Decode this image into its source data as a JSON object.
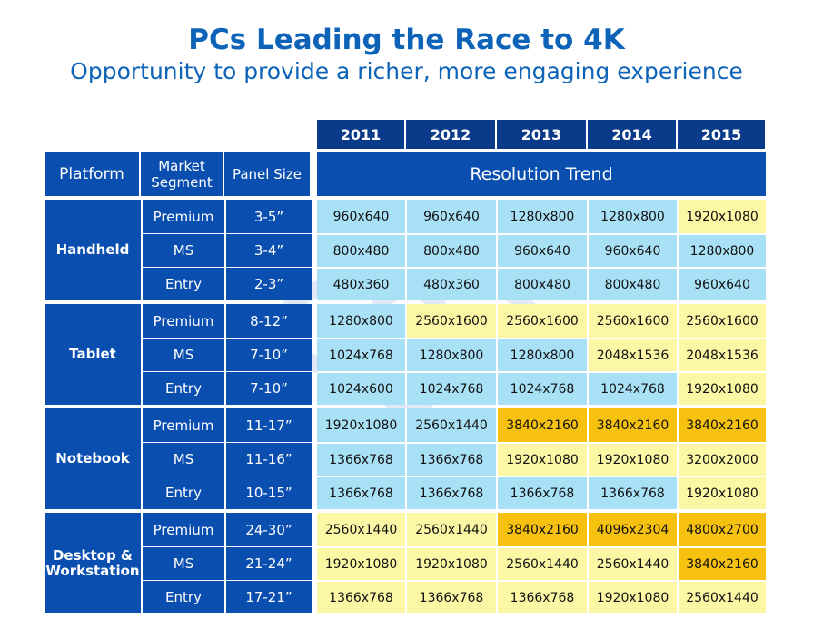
{
  "title": "PCs Leading the Race to 4K",
  "subtitle": "Opportunity to provide a richer, more engaging experience",
  "watermark": "vr-zone.com",
  "colors": {
    "blue": "#a8e0f6",
    "yellow": "#fbf7a4",
    "orange": "#f6c20f",
    "header": "#0a4fb0",
    "year": "#0a3a8a"
  },
  "headers": {
    "platform": "Platform",
    "segment_line1": "Market",
    "segment_line2": "Segment",
    "panel_size": "Panel Size",
    "resolution_trend": "Resolution Trend"
  },
  "years": [
    "2011",
    "2012",
    "2013",
    "2014",
    "2015"
  ],
  "platforms": [
    {
      "name_line1": "Handheld",
      "name_line2": "",
      "rows": [
        {
          "segment": "Premium",
          "size": "3-5”",
          "values": [
            "960x640",
            "960x640",
            "1280x800",
            "1280x800",
            "1920x1080"
          ],
          "colors": [
            "blue",
            "blue",
            "blue",
            "blue",
            "yellow"
          ]
        },
        {
          "segment": "MS",
          "size": "3-4”",
          "values": [
            "800x480",
            "800x480",
            "960x640",
            "960x640",
            "1280x800"
          ],
          "colors": [
            "blue",
            "blue",
            "blue",
            "blue",
            "blue"
          ]
        },
        {
          "segment": "Entry",
          "size": "2-3”",
          "values": [
            "480x360",
            "480x360",
            "800x480",
            "800x480",
            "960x640"
          ],
          "colors": [
            "blue",
            "blue",
            "blue",
            "blue",
            "blue"
          ]
        }
      ]
    },
    {
      "name_line1": "Tablet",
      "name_line2": "",
      "rows": [
        {
          "segment": "Premium",
          "size": "8-12”",
          "values": [
            "1280x800",
            "2560x1600",
            "2560x1600",
            "2560x1600",
            "2560x1600"
          ],
          "colors": [
            "blue",
            "yellow",
            "yellow",
            "yellow",
            "yellow"
          ]
        },
        {
          "segment": "MS",
          "size": "7-10”",
          "values": [
            "1024x768",
            "1280x800",
            "1280x800",
            "2048x1536",
            "2048x1536"
          ],
          "colors": [
            "blue",
            "blue",
            "blue",
            "yellow",
            "yellow"
          ]
        },
        {
          "segment": "Entry",
          "size": "7-10”",
          "values": [
            "1024x600",
            "1024x768",
            "1024x768",
            "1024x768",
            "1920x1080"
          ],
          "colors": [
            "blue",
            "blue",
            "blue",
            "blue",
            "yellow"
          ]
        }
      ]
    },
    {
      "name_line1": "Notebook",
      "name_line2": "",
      "rows": [
        {
          "segment": "Premium",
          "size": "11-17”",
          "values": [
            "1920x1080",
            "2560x1440",
            "3840x2160",
            "3840x2160",
            "3840x2160"
          ],
          "colors": [
            "blue",
            "blue",
            "orange",
            "orange",
            "orange"
          ]
        },
        {
          "segment": "MS",
          "size": "11-16”",
          "values": [
            "1366x768",
            "1366x768",
            "1920x1080",
            "1920x1080",
            "3200x2000"
          ],
          "colors": [
            "blue",
            "blue",
            "yellow",
            "yellow",
            "yellow"
          ]
        },
        {
          "segment": "Entry",
          "size": "10-15”",
          "values": [
            "1366x768",
            "1366x768",
            "1366x768",
            "1366x768",
            "1920x1080"
          ],
          "colors": [
            "blue",
            "blue",
            "blue",
            "blue",
            "yellow"
          ]
        }
      ]
    },
    {
      "name_line1": "Desktop &",
      "name_line2": "Workstation",
      "rows": [
        {
          "segment": "Premium",
          "size": "24-30”",
          "values": [
            "2560x1440",
            "2560x1440",
            "3840x2160",
            "4096x2304",
            "4800x2700"
          ],
          "colors": [
            "yellow",
            "yellow",
            "orange",
            "orange",
            "orange"
          ]
        },
        {
          "segment": "MS",
          "size": "21-24”",
          "values": [
            "1920x1080",
            "1920x1080",
            "2560x1440",
            "2560x1440",
            "3840x2160"
          ],
          "colors": [
            "yellow",
            "yellow",
            "yellow",
            "yellow",
            "orange"
          ]
        },
        {
          "segment": "Entry",
          "size": "17-21”",
          "values": [
            "1366x768",
            "1366x768",
            "1366x768",
            "1920x1080",
            "2560x1440"
          ],
          "colors": [
            "yellow",
            "yellow",
            "yellow",
            "yellow",
            "yellow"
          ]
        }
      ]
    }
  ]
}
